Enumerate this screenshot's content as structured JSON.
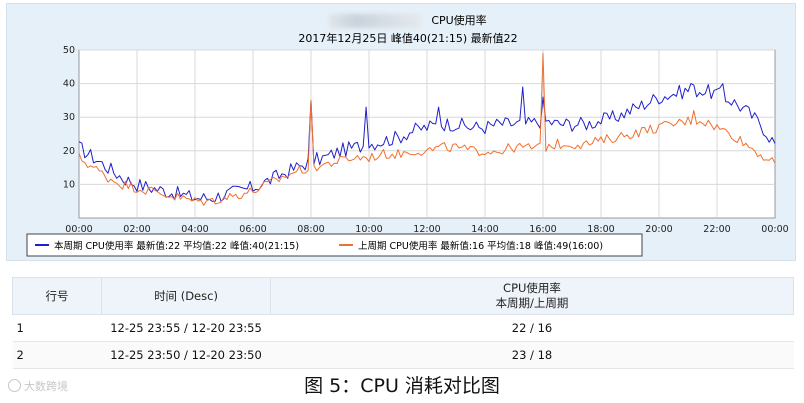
{
  "chart_data": {
    "type": "line",
    "title": "CPU使用率",
    "subtitle": "2017年12月25日  峰值40(21:15)  最新值22",
    "xlabel": "",
    "ylabel": "",
    "ylim": [
      0,
      50
    ],
    "yticks": [
      10,
      20,
      30,
      40,
      50
    ],
    "xlim_hours": [
      0,
      24
    ],
    "xticks": [
      "00:00",
      "02:00",
      "04:00",
      "06:00",
      "08:00",
      "10:00",
      "12:00",
      "14:00",
      "16:00",
      "18:00",
      "20:00",
      "22:00",
      "00:00"
    ],
    "grid": true,
    "legend_position": "bottom",
    "series": [
      {
        "name": "本周期 CPU使用率",
        "legend_label": "本周期  CPU使用率  最新值:22    平均值:22     峰值:40(21:15)",
        "color": "#2020c8",
        "points": [
          [
            0.0,
            21
          ],
          [
            0.5,
            18
          ],
          [
            1.0,
            15
          ],
          [
            1.5,
            12
          ],
          [
            2.0,
            10
          ],
          [
            2.5,
            9
          ],
          [
            3.0,
            8
          ],
          [
            3.5,
            7
          ],
          [
            4.0,
            6
          ],
          [
            4.5,
            6
          ],
          [
            5.0,
            7
          ],
          [
            5.5,
            8
          ],
          [
            6.0,
            9
          ],
          [
            6.5,
            11
          ],
          [
            7.0,
            13
          ],
          [
            7.5,
            15
          ],
          [
            8.0,
            17
          ],
          [
            8.5,
            18
          ],
          [
            9.0,
            20
          ],
          [
            9.5,
            21
          ],
          [
            10.0,
            22
          ],
          [
            10.5,
            23
          ],
          [
            11.0,
            24
          ],
          [
            11.5,
            26
          ],
          [
            12.0,
            27
          ],
          [
            12.5,
            28
          ],
          [
            13.0,
            28
          ],
          [
            13.5,
            27
          ],
          [
            14.0,
            27
          ],
          [
            14.5,
            28
          ],
          [
            15.0,
            28
          ],
          [
            15.5,
            28
          ],
          [
            16.0,
            29
          ],
          [
            16.5,
            28
          ],
          [
            17.0,
            28
          ],
          [
            17.5,
            28
          ],
          [
            18.0,
            29
          ],
          [
            18.5,
            30
          ],
          [
            19.0,
            32
          ],
          [
            19.5,
            34
          ],
          [
            20.0,
            36
          ],
          [
            20.5,
            37
          ],
          [
            21.0,
            38
          ],
          [
            21.5,
            38
          ],
          [
            22.0,
            37
          ],
          [
            22.5,
            35
          ],
          [
            23.0,
            32
          ],
          [
            23.5,
            28
          ],
          [
            24.0,
            22
          ]
        ],
        "spikes": [
          [
            0.05,
            25
          ],
          [
            8.0,
            35
          ],
          [
            9.85,
            33
          ],
          [
            12.4,
            33
          ],
          [
            15.3,
            39
          ],
          [
            16.0,
            36
          ],
          [
            21.15,
            40
          ],
          [
            22.25,
            40
          ]
        ],
        "noise": 2.2
      },
      {
        "name": "上周期 CPU使用率",
        "legend_label": "上周期  CPU使用率  最新值:16    平均值:18     峰值:49(16:00)",
        "color": "#f07030",
        "points": [
          [
            0.0,
            18
          ],
          [
            0.5,
            15
          ],
          [
            1.0,
            12
          ],
          [
            1.5,
            10
          ],
          [
            2.0,
            9
          ],
          [
            2.5,
            8
          ],
          [
            3.0,
            7
          ],
          [
            3.5,
            6
          ],
          [
            4.0,
            5
          ],
          [
            4.5,
            5
          ],
          [
            5.0,
            6
          ],
          [
            5.5,
            7
          ],
          [
            6.0,
            8
          ],
          [
            6.5,
            10
          ],
          [
            7.0,
            12
          ],
          [
            7.5,
            14
          ],
          [
            8.0,
            15
          ],
          [
            8.5,
            16
          ],
          [
            9.0,
            17
          ],
          [
            9.5,
            18
          ],
          [
            10.0,
            18
          ],
          [
            10.5,
            19
          ],
          [
            11.0,
            19
          ],
          [
            11.5,
            20
          ],
          [
            12.0,
            20
          ],
          [
            12.5,
            21
          ],
          [
            13.0,
            21
          ],
          [
            13.5,
            20
          ],
          [
            14.0,
            20
          ],
          [
            14.5,
            20
          ],
          [
            15.0,
            21
          ],
          [
            15.5,
            21
          ],
          [
            16.0,
            21
          ],
          [
            16.5,
            22
          ],
          [
            17.0,
            22
          ],
          [
            17.5,
            22
          ],
          [
            18.0,
            23
          ],
          [
            18.5,
            24
          ],
          [
            19.0,
            25
          ],
          [
            19.5,
            26
          ],
          [
            20.0,
            27
          ],
          [
            20.5,
            28
          ],
          [
            21.0,
            29
          ],
          [
            21.5,
            29
          ],
          [
            22.0,
            27
          ],
          [
            22.5,
            25
          ],
          [
            23.0,
            22
          ],
          [
            23.5,
            19
          ],
          [
            24.0,
            16
          ]
        ],
        "spikes": [
          [
            8.0,
            35
          ],
          [
            16.0,
            49
          ],
          [
            21.2,
            32
          ]
        ],
        "noise": 1.5
      }
    ]
  },
  "table": {
    "headers": {
      "row": "行号",
      "time": "时间 (Desc)",
      "value_line1": "CPU使用率",
      "value_line2": "本周期/上周期"
    },
    "rows": [
      {
        "row": "1",
        "time": "12-25 23:55 / 12-20 23:55",
        "value": "22  /  16"
      },
      {
        "row": "2",
        "time": "12-25 23:50 / 12-20 23:50",
        "value": "23  /  18"
      }
    ]
  },
  "caption": "图 5：CPU 消耗对比图",
  "watermark": "大数跨境"
}
